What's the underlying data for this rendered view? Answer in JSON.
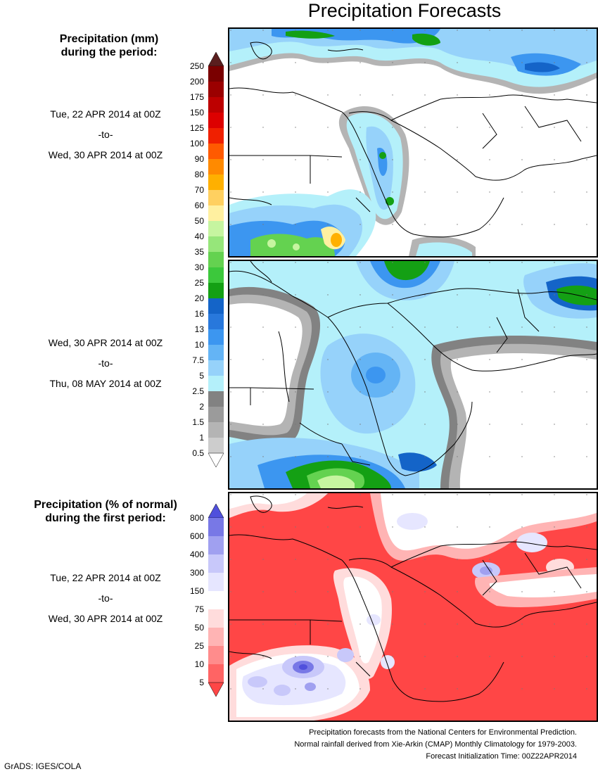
{
  "title": "Precipitation Forecasts",
  "left": {
    "mm_header": [
      "Precipitation (mm)",
      "during the period:"
    ],
    "period1": [
      "Tue, 22 APR 2014 at 00Z",
      "-to-",
      "Wed, 30 APR 2014 at 00Z"
    ],
    "period2": [
      "Wed, 30 APR 2014 at 00Z",
      "-to-",
      "Thu, 08 MAY 2014 at 00Z"
    ],
    "pct_header": [
      "Precipitation (% of normal)",
      "during the first period:"
    ],
    "period3": [
      "Tue, 22 APR 2014 at 00Z",
      "-to-",
      "Wed, 30 APR 2014 at 00Z"
    ]
  },
  "mm_scale": {
    "labels": [
      "250",
      "200",
      "175",
      "150",
      "125",
      "100",
      "90",
      "80",
      "70",
      "60",
      "50",
      "40",
      "35",
      "30",
      "25",
      "20",
      "16",
      "13",
      "10",
      "7.5",
      "5",
      "2.5",
      "2",
      "1.5",
      "1",
      "0.5"
    ],
    "colors": [
      "#5a1e1e",
      "#7a0000",
      "#9b0000",
      "#bd0000",
      "#dd0000",
      "#f02000",
      "#ff5a00",
      "#ff8a00",
      "#ffb000",
      "#ffd060",
      "#fff0a0",
      "#c6f5a0",
      "#96e67a",
      "#64d250",
      "#3cc83c",
      "#14a014",
      "#1464c8",
      "#2878dc",
      "#3c96f0",
      "#64b4f5",
      "#96d2fa",
      "#b4f0fa",
      "#828282",
      "#9b9b9b",
      "#b4b4b4",
      "#cdcdcd"
    ],
    "bottom_arrow_color": "#ffffff"
  },
  "pct_scale": {
    "labels": [
      "800",
      "600",
      "400",
      "300",
      "150",
      "75",
      "50",
      "25",
      "10",
      "5"
    ],
    "colors": [
      "#5050dc",
      "#7878e6",
      "#a0a0f0",
      "#c8c8fa",
      "#e6e6ff",
      "#ffffff",
      "#ffdcdc",
      "#ffb4b4",
      "#ff8c8c",
      "#ff6464",
      "#ff4646"
    ]
  },
  "credits": [
    "Precipitation forecasts from the National Centers for Environmental Prediction.",
    "Normal rainfall derived from Xie-Arkin (CMAP) Monthly Climatology for 1979-2003.",
    "Forecast Initialization Time: 00Z22APR2014"
  ],
  "software": "GrADS: IGES/COLA"
}
